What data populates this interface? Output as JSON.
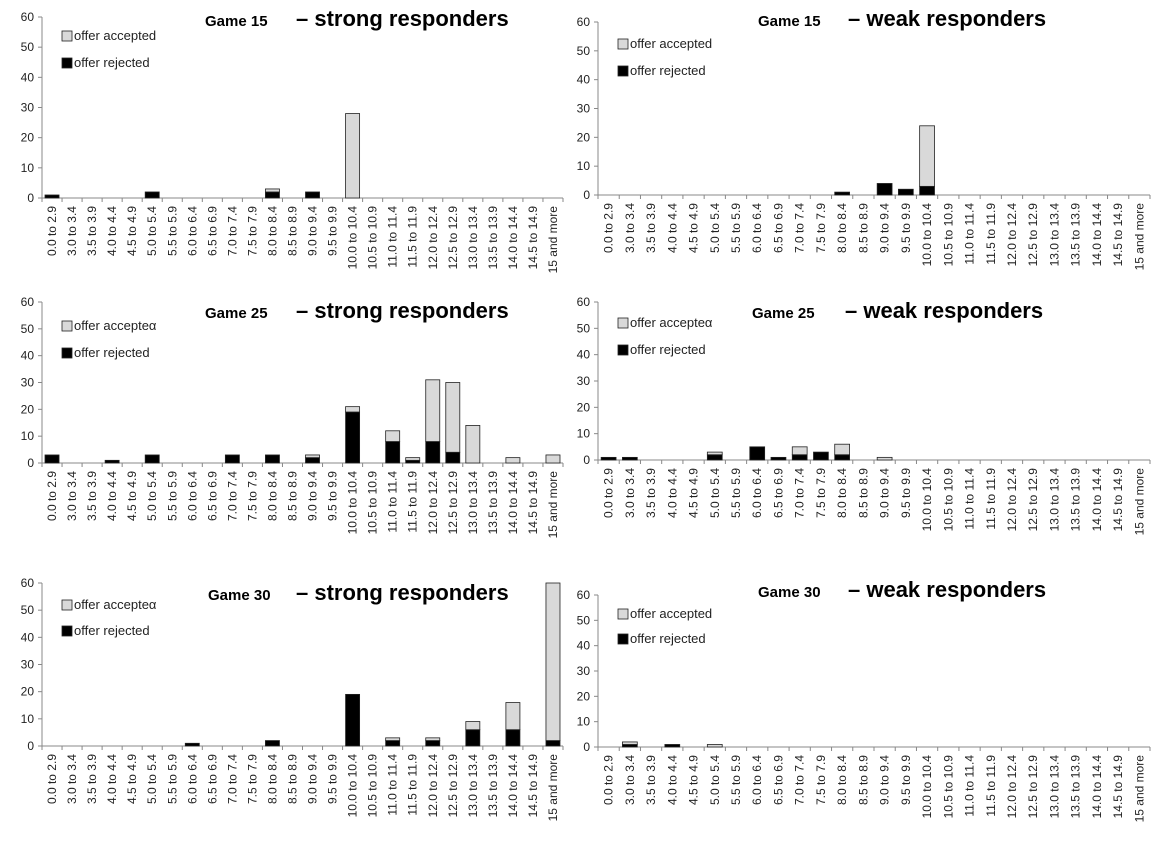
{
  "categories": [
    "0.0 to 2.9",
    "3.0 to 3.4",
    "3.5 to 3.9",
    "4.0 to 4.4",
    "4.5 to 4.9",
    "5.0 to 5.4",
    "5.5 to 5.9",
    "6.0 to 6.4",
    "6.5 to 6.9",
    "7.0 to 7.4",
    "7.5 to 7.9",
    "8.0 to 8.4",
    "8.5 to 8.9",
    "9.0 to 9.4",
    "9.5 to 9.9",
    "10.0 to 10.4",
    "10.5 to 10.9",
    "11.0 to 11.4",
    "11.5 to 11.9",
    "12.0 to 12.4",
    "12.5 to 12.9",
    "13.0 to 13.4",
    "13.5 to 13.9",
    "14.0 to 14.4",
    "14.5 to 14.9",
    "15 and more"
  ],
  "chart_data": [
    {
      "type": "bar",
      "title_game": "Game 15",
      "title_rest": "– strong responders",
      "ylim": [
        0,
        60
      ],
      "yticks": [
        0,
        10,
        20,
        30,
        40,
        50,
        60
      ],
      "legend": [
        "offer accepted",
        "offer rejected"
      ],
      "series": [
        {
          "name": "offer rejected",
          "values": [
            1,
            0,
            0,
            0,
            0,
            2,
            0,
            0,
            0,
            0,
            0,
            2,
            0,
            2,
            0,
            0,
            0,
            0,
            0,
            0,
            0,
            0,
            0,
            0,
            0,
            0
          ]
        },
        {
          "name": "offer accepted",
          "values": [
            0,
            0,
            0,
            0,
            0,
            0,
            0,
            0,
            0,
            0,
            0,
            1,
            0,
            0,
            0,
            28,
            0,
            0,
            0,
            0,
            0,
            0,
            0,
            0,
            0,
            0
          ]
        }
      ]
    },
    {
      "type": "bar",
      "title_game": "Game 15",
      "title_rest": "– weak responders",
      "ylim": [
        0,
        60
      ],
      "yticks": [
        0,
        10,
        20,
        30,
        40,
        50,
        60
      ],
      "legend": [
        "offer accepted",
        "offer rejected"
      ],
      "series": [
        {
          "name": "offer rejected",
          "values": [
            0,
            0,
            0,
            0,
            0,
            0,
            0,
            0,
            0,
            0,
            0,
            1,
            0,
            4,
            2,
            3,
            0,
            0,
            0,
            0,
            0,
            0,
            0,
            0,
            0,
            0
          ]
        },
        {
          "name": "offer accepted",
          "values": [
            0,
            0,
            0,
            0,
            0,
            0,
            0,
            0,
            0,
            0,
            0,
            0,
            0,
            0,
            0,
            21,
            0,
            0,
            0,
            0,
            0,
            0,
            0,
            0,
            0,
            0
          ]
        }
      ]
    },
    {
      "type": "bar",
      "title_game": "Game 25",
      "title_rest": "– strong responders",
      "ylim": [
        0,
        60
      ],
      "yticks": [
        0,
        10,
        20,
        30,
        40,
        50,
        60
      ],
      "legend": [
        "offer accepteα",
        "offer rejected"
      ],
      "series": [
        {
          "name": "offer rejected",
          "values": [
            3,
            0,
            0,
            1,
            0,
            3,
            0,
            0,
            0,
            3,
            0,
            3,
            0,
            2,
            0,
            19,
            0,
            8,
            1,
            8,
            4,
            0,
            0,
            0,
            0,
            0
          ]
        },
        {
          "name": "offer accepted",
          "values": [
            0,
            0,
            0,
            0,
            0,
            0,
            0,
            0,
            0,
            0,
            0,
            0,
            0,
            1,
            0,
            2,
            0,
            4,
            1,
            23,
            26,
            14,
            0,
            2,
            0,
            3
          ]
        }
      ]
    },
    {
      "type": "bar",
      "title_game": "Game 25",
      "title_rest": "– weak responders",
      "ylim": [
        0,
        60
      ],
      "yticks": [
        0,
        10,
        20,
        30,
        40,
        50,
        60
      ],
      "legend": [
        "offer accepteα",
        "offer rejected"
      ],
      "series": [
        {
          "name": "offer rejected",
          "values": [
            1,
            1,
            0,
            0,
            0,
            2,
            0,
            5,
            1,
            2,
            3,
            2,
            0,
            0,
            0,
            0,
            0,
            0,
            0,
            0,
            0,
            0,
            0,
            0,
            0,
            0
          ]
        },
        {
          "name": "offer accepted",
          "values": [
            0,
            0,
            0,
            0,
            0,
            1,
            0,
            0,
            0,
            3,
            0,
            4,
            0,
            1,
            0,
            0,
            0,
            0,
            0,
            0,
            0,
            0,
            0,
            0,
            0,
            0
          ]
        }
      ]
    },
    {
      "type": "bar",
      "title_game": "Game 30",
      "title_rest": "– strong responders",
      "ylim": [
        0,
        60
      ],
      "yticks": [
        0,
        10,
        20,
        30,
        40,
        50,
        60
      ],
      "legend": [
        "offer accepteα",
        "offer rejected"
      ],
      "series": [
        {
          "name": "offer rejected",
          "values": [
            0,
            0,
            0,
            0,
            0,
            0,
            0,
            1,
            0,
            0,
            0,
            2,
            0,
            0,
            0,
            19,
            0,
            2,
            0,
            2,
            0,
            6,
            0,
            6,
            0,
            2
          ]
        },
        {
          "name": "offer accepted",
          "values": [
            0,
            0,
            0,
            0,
            0,
            0,
            0,
            0,
            0,
            0,
            0,
            0,
            0,
            0,
            0,
            0,
            0,
            1,
            0,
            1,
            0,
            3,
            0,
            10,
            0,
            58
          ]
        }
      ]
    },
    {
      "type": "bar",
      "title_game": "Game 30",
      "title_rest": "– weak responders",
      "ylim": [
        0,
        60
      ],
      "yticks": [
        0,
        10,
        20,
        30,
        40,
        50,
        60
      ],
      "legend": [
        "offer accepted",
        "offer rejected"
      ],
      "series": [
        {
          "name": "offer rejected",
          "values": [
            0,
            1,
            0,
            1,
            0,
            0,
            0,
            0,
            0,
            0,
            0,
            0,
            0,
            0,
            0,
            0,
            0,
            0,
            0,
            0,
            0,
            0,
            0,
            0,
            0,
            0
          ]
        },
        {
          "name": "offer accepted",
          "values": [
            0,
            1,
            0,
            0,
            0,
            1,
            0,
            0,
            0,
            0,
            0,
            0,
            0,
            0,
            0,
            0,
            0,
            0,
            0,
            0,
            0,
            0,
            0,
            0,
            0,
            0
          ]
        }
      ]
    }
  ],
  "colors": {
    "accepted": "#d9d9d9",
    "rejected": "#000000",
    "axis": "#888888",
    "bar_outline": "#222222"
  }
}
